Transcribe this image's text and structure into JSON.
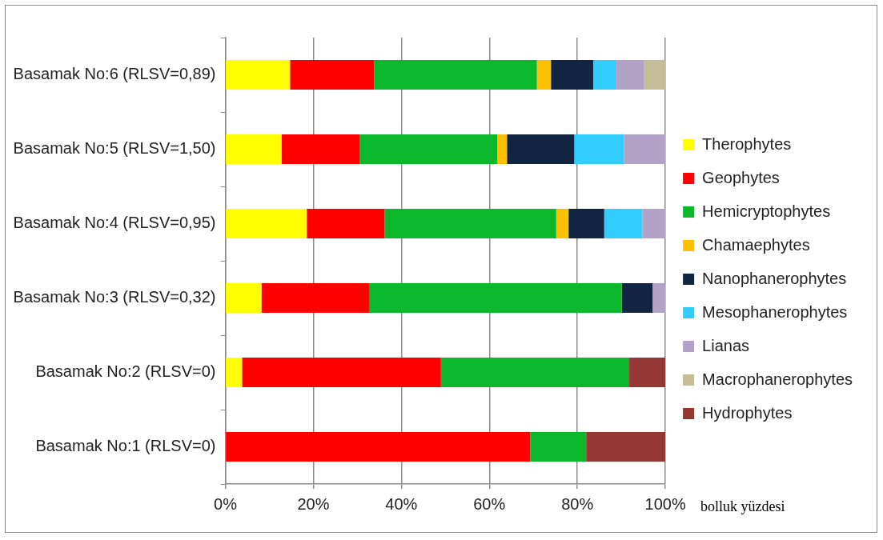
{
  "chart_data": {
    "type": "bar",
    "orientation": "horizontal",
    "stacked": true,
    "categories": [
      "Basamak No:6 (RLSV=0,89)",
      "Basamak No:5 (RLSV=1,50)",
      "Basamak No:4 (RLSV=0,95)",
      "Basamak No:3 (RLSV=0,32)",
      "Basamak No:2 (RLSV=0)",
      "Basamak No:1 (RLSV=0)"
    ],
    "series": [
      {
        "name": "Therophytes",
        "color": "#ffff00",
        "values": [
          14.7,
          12.8,
          18.5,
          8.2,
          3.8,
          null
        ]
      },
      {
        "name": "Geophytes",
        "color": "#ff0000",
        "values": [
          19.1,
          17.8,
          17.7,
          24.6,
          45.2,
          69.3
        ]
      },
      {
        "name": "Hemicryptophytes",
        "color": "#0cb82b",
        "values": [
          37.0,
          31.2,
          39.0,
          57.3,
          42.8,
          12.7
        ]
      },
      {
        "name": "Chamaephytes",
        "color": "#ffc000",
        "values": [
          3.2,
          2.2,
          2.8,
          null,
          null,
          null
        ]
      },
      {
        "name": "Nanophanerophytes",
        "color": "#112542",
        "values": [
          9.6,
          15.3,
          8.1,
          7.0,
          null,
          null
        ]
      },
      {
        "name": "Mesophanerophytes",
        "color": "#33ccff",
        "values": [
          5.1,
          11.3,
          8.7,
          null,
          null,
          null
        ]
      },
      {
        "name": "Lianas",
        "color": "#b3a2c7",
        "values": [
          6.5,
          9.4,
          5.2,
          2.9,
          null,
          null
        ]
      },
      {
        "name": "Macrophanerophytes",
        "color": "#c4bd97",
        "values": [
          4.8,
          null,
          null,
          null,
          null,
          null
        ]
      },
      {
        "name": "Hydrophytes",
        "color": "#953735",
        "values": [
          null,
          null,
          null,
          null,
          8.2,
          18.0
        ]
      }
    ],
    "xlabel": "bolluk yüzdesi",
    "xlim": [
      0,
      100
    ],
    "xticks": [
      {
        "value": 0,
        "label": "0%"
      },
      {
        "value": 20,
        "label": "20%"
      },
      {
        "value": 40,
        "label": "40%"
      },
      {
        "value": 60,
        "label": "60%"
      },
      {
        "value": 80,
        "label": "80%"
      },
      {
        "value": 100,
        "label": "100%"
      }
    ],
    "grid": "x",
    "legend": "right"
  }
}
